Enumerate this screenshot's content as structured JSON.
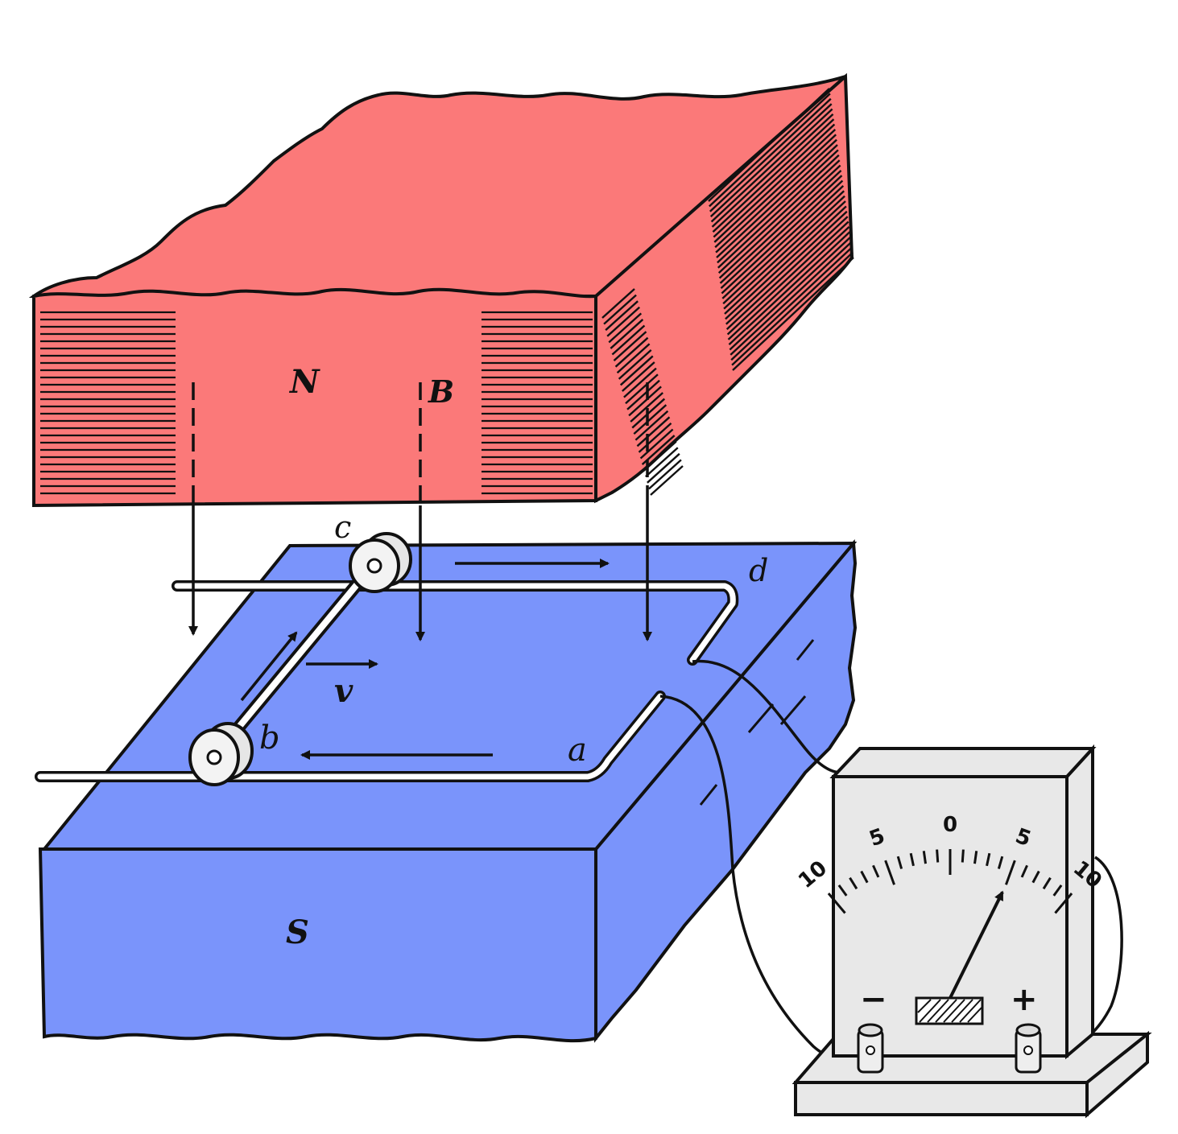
{
  "labels": {
    "north_pole": "N",
    "south_pole": "S",
    "field": "B",
    "velocity": "v",
    "point_a": "a",
    "point_b": "b",
    "point_c": "c",
    "point_d": "d"
  },
  "meter": {
    "scale": [
      "10",
      "5",
      "0",
      "5",
      "10"
    ],
    "minus": "−",
    "plus": "+",
    "reading": 5
  },
  "colors": {
    "north_magnet": "#fb7979",
    "south_magnet": "#7a94fb",
    "meter_body": "#e8e8e8",
    "outline": "#111111"
  }
}
